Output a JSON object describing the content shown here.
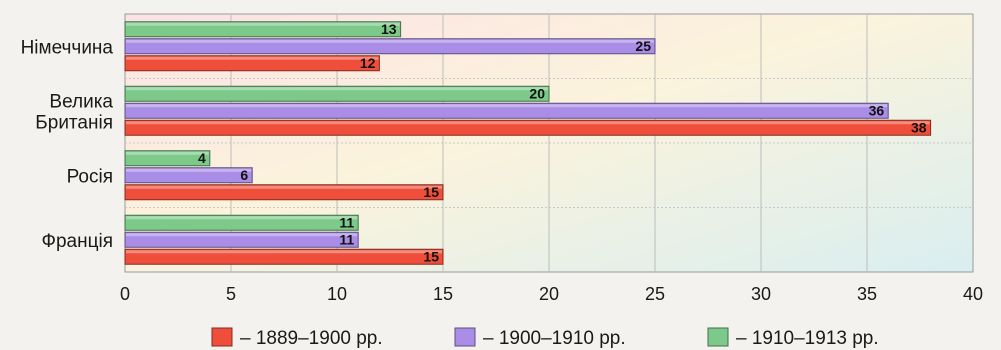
{
  "chart_data": {
    "type": "bar",
    "orientation": "horizontal",
    "categories": [
      "Німеччина",
      "Велика Британія",
      "Росія",
      "Франція"
    ],
    "category_lines": [
      [
        "Німеччина"
      ],
      [
        "Велика",
        "Британія"
      ],
      [
        "Росія"
      ],
      [
        "Франція"
      ]
    ],
    "series": [
      {
        "name": "– 1910–1913 рр.",
        "color": "#7cc98a",
        "values": [
          13,
          20,
          4,
          11
        ]
      },
      {
        "name": "– 1900–1910 рр.",
        "color": "#a98de6",
        "values": [
          25,
          36,
          6,
          11
        ]
      },
      {
        "name": "– 1889–1900 рр.",
        "color": "#ef4f3a",
        "values": [
          12,
          38,
          15,
          15
        ]
      }
    ],
    "legend_order": [
      2,
      1,
      0
    ],
    "xlim": [
      0,
      40
    ],
    "xticks": [
      0,
      5,
      10,
      15,
      20,
      25,
      30,
      35,
      40
    ],
    "grid": true,
    "legend_position": "bottom"
  }
}
